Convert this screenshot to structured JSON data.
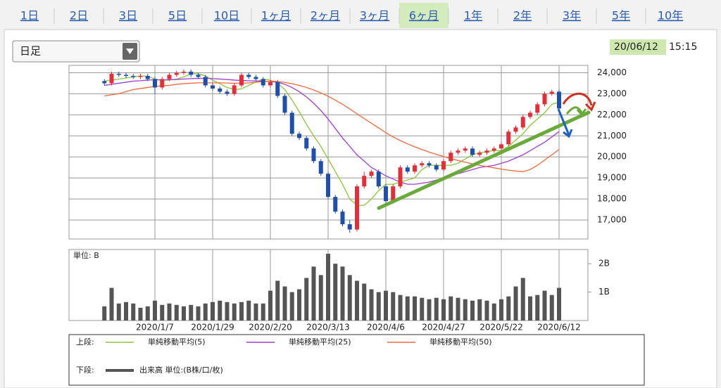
{
  "tabs": [
    "1日",
    "2日",
    "3日",
    "5日",
    "10日",
    "1ヶ月",
    "2ヶ月",
    "3ヶ月",
    "6ヶ月",
    "1年",
    "2年",
    "3年",
    "5年",
    "10年"
  ],
  "selected_tab_index": 8,
  "interval_select": "日足",
  "timestamp": {
    "date": "20/06/12",
    "time": "15:15"
  },
  "legend": {
    "upper": "上段:",
    "lower": "下段:"
  },
  "chart_data": [
    {
      "type": "candlestick",
      "ylim": [
        16100,
        24350
      ],
      "yticks": [
        {
          "value": 17000,
          "label": "17,000"
        },
        {
          "value": 18000,
          "label": "18,000"
        },
        {
          "value": 19000,
          "label": "19,000"
        },
        {
          "value": 20000,
          "label": "20,000"
        },
        {
          "value": 21000,
          "label": "21,000"
        },
        {
          "value": 22000,
          "label": "22,000"
        },
        {
          "value": 23000,
          "label": "23,000"
        },
        {
          "value": 24000,
          "label": "24,000"
        }
      ],
      "grid": true,
      "up_color": "#e0303a",
      "down_color": "#1f4fa8",
      "open": [
        23600,
        23500,
        23950,
        23900,
        23850,
        23800,
        23850,
        23700,
        23300,
        23700,
        23900,
        24000,
        24050,
        23900,
        23800,
        23400,
        23250,
        23100,
        23000,
        23400,
        23900,
        23800,
        23700,
        23400,
        23550,
        22900,
        22100,
        21100,
        20900,
        20400,
        19800,
        19200,
        18100,
        17400,
        16800,
        16550,
        18600,
        19100,
        19300,
        18600,
        17900,
        18600,
        19500,
        19300,
        19600,
        19700,
        19600,
        19400,
        19800,
        20200,
        20300,
        20400,
        20100,
        20200,
        20300,
        20400,
        20600,
        21200,
        21400,
        21900,
        22100,
        22500,
        23000,
        23100
      ],
      "high": [
        23700,
        24050,
        24050,
        24000,
        23950,
        23950,
        23950,
        23800,
        23800,
        24000,
        24100,
        24150,
        24150,
        24000,
        23900,
        23500,
        23350,
        23200,
        23500,
        24000,
        24000,
        23900,
        23800,
        23650,
        23650,
        23000,
        22200,
        21200,
        21000,
        20500,
        19900,
        19300,
        18200,
        17500,
        17000,
        18700,
        19300,
        19400,
        19400,
        18700,
        18700,
        19600,
        19600,
        19700,
        19800,
        19800,
        19700,
        19900,
        20300,
        20400,
        20500,
        20500,
        20300,
        20400,
        20500,
        20700,
        21300,
        21500,
        22000,
        22200,
        22600,
        23100,
        23200,
        23200
      ],
      "low": [
        23400,
        23400,
        23800,
        23750,
        23700,
        23700,
        23600,
        23000,
        23200,
        23600,
        23800,
        23900,
        23800,
        23700,
        23300,
        23150,
        23000,
        22900,
        22900,
        23300,
        23700,
        23600,
        23300,
        23300,
        22800,
        22000,
        21000,
        20800,
        20300,
        19700,
        19100,
        18000,
        17300,
        16700,
        16400,
        16450,
        18500,
        19000,
        18500,
        17800,
        17800,
        18500,
        19200,
        19200,
        19500,
        19500,
        19300,
        19300,
        19700,
        20100,
        20200,
        20000,
        20000,
        20100,
        20200,
        20300,
        20500,
        21100,
        21300,
        21800,
        22000,
        22400,
        22900,
        22200
      ],
      "close": [
        23500,
        23950,
        23900,
        23850,
        23800,
        23850,
        23700,
        23300,
        23700,
        23900,
        24000,
        24050,
        23900,
        23800,
        23400,
        23250,
        23100,
        23000,
        23400,
        23900,
        23800,
        23700,
        23400,
        23550,
        22900,
        22100,
        21100,
        20900,
        20400,
        19800,
        19200,
        18100,
        17400,
        16800,
        16550,
        18600,
        19100,
        19300,
        18600,
        17900,
        18600,
        19500,
        19300,
        19600,
        19700,
        19600,
        19400,
        19800,
        20200,
        20300,
        20400,
        20100,
        20200,
        20300,
        20400,
        20600,
        21200,
        21400,
        21900,
        22100,
        22500,
        23000,
        23100,
        22300
      ],
      "series": [
        {
          "name": "単純移動平均(5)",
          "color": "#8cc63f",
          "values": [
            23600,
            23650,
            23700,
            23750,
            23800,
            23850,
            23830,
            23700,
            23650,
            23650,
            23700,
            23800,
            23950,
            23950,
            23850,
            23650,
            23480,
            23300,
            23200,
            23230,
            23400,
            23560,
            23700,
            23650,
            23500,
            23200,
            22700,
            22150,
            21550,
            21000,
            20500,
            19900,
            19300,
            18700,
            18000,
            17700,
            17700,
            18000,
            18400,
            18700,
            18700,
            18800,
            18900,
            19000,
            19400,
            19600,
            19600,
            19600,
            19600,
            19700,
            19900,
            20100,
            20200,
            20250,
            20300,
            20300,
            20500,
            20800,
            21100,
            21500,
            21800,
            22100,
            22500,
            22600
          ]
        },
        {
          "name": "単純移動平均(25)",
          "color": "#a23fd0",
          "values": [
            23400,
            23450,
            23500,
            23550,
            23600,
            23620,
            23650,
            23660,
            23660,
            23670,
            23680,
            23700,
            23720,
            23730,
            23730,
            23720,
            23700,
            23680,
            23650,
            23630,
            23620,
            23610,
            23600,
            23580,
            23550,
            23450,
            23300,
            23100,
            22850,
            22550,
            22200,
            21800,
            21350,
            20900,
            20500,
            20100,
            19800,
            19500,
            19300,
            19100,
            18950,
            18800,
            18700,
            18700,
            18750,
            18800,
            18900,
            19000,
            19100,
            19200,
            19300,
            19400,
            19500,
            19550,
            19600,
            19700,
            19800,
            19950,
            20100,
            20300,
            20500,
            20700,
            20950,
            21200
          ]
        },
        {
          "name": "単純移動平均(50)",
          "color": "#f0693c",
          "values": [
            22900,
            22950,
            23000,
            23100,
            23200,
            23250,
            23300,
            23350,
            23380,
            23400,
            23450,
            23480,
            23500,
            23520,
            23520,
            23520,
            23520,
            23510,
            23500,
            23500,
            23520,
            23550,
            23580,
            23600,
            23580,
            23540,
            23480,
            23400,
            23300,
            23180,
            23040,
            22880,
            22700,
            22500,
            22280,
            22050,
            21820,
            21600,
            21380,
            21150,
            20950,
            20780,
            20620,
            20480,
            20350,
            20230,
            20120,
            20020,
            19920,
            19830,
            19750,
            19670,
            19600,
            19540,
            19480,
            19420,
            19370,
            19330,
            19300,
            19400,
            19600,
            19850,
            20100,
            20350
          ]
        }
      ]
    },
    {
      "type": "bar",
      "unit_label": "単位: B",
      "categories": [
        null,
        null,
        null,
        null,
        null,
        null,
        null,
        "2020/1/7",
        null,
        null,
        null,
        null,
        null,
        null,
        null,
        "2020/1/29",
        null,
        null,
        null,
        null,
        null,
        null,
        null,
        "2020/2/20",
        null,
        null,
        null,
        null,
        null,
        null,
        null,
        "2020/3/13",
        null,
        null,
        null,
        null,
        null,
        null,
        null,
        "2020/4/6",
        null,
        null,
        null,
        null,
        null,
        null,
        null,
        "2020/4/27",
        null,
        null,
        null,
        null,
        null,
        null,
        null,
        "2020/5/22",
        null,
        null,
        null,
        null,
        null,
        null,
        null,
        "2020/6/12"
      ],
      "ylim": [
        0,
        2.5
      ],
      "yticks": [
        {
          "value": 1,
          "label": "1B"
        },
        {
          "value": 2,
          "label": "2B"
        }
      ],
      "series": [
        {
          "name": "出来高 単位:(B株/口/枚)",
          "color": "#555555",
          "values": [
            0.5,
            1.15,
            0.6,
            0.65,
            0.6,
            0.45,
            0.5,
            0.7,
            0.55,
            0.6,
            0.55,
            0.5,
            0.55,
            0.5,
            0.6,
            0.65,
            0.7,
            0.65,
            0.6,
            0.65,
            0.7,
            0.6,
            0.6,
            1.05,
            1.4,
            1.2,
            1.0,
            1.1,
            1.5,
            1.9,
            1.6,
            2.35,
            2.0,
            1.9,
            1.6,
            1.4,
            1.3,
            1.1,
            1.0,
            1.05,
            1.0,
            0.9,
            0.85,
            0.85,
            0.8,
            0.75,
            0.8,
            0.75,
            0.85,
            0.8,
            0.75,
            0.7,
            0.75,
            0.7,
            0.6,
            0.75,
            0.85,
            1.2,
            1.5,
            0.85,
            0.9,
            1.05,
            0.9,
            1.15
          ]
        }
      ]
    }
  ]
}
